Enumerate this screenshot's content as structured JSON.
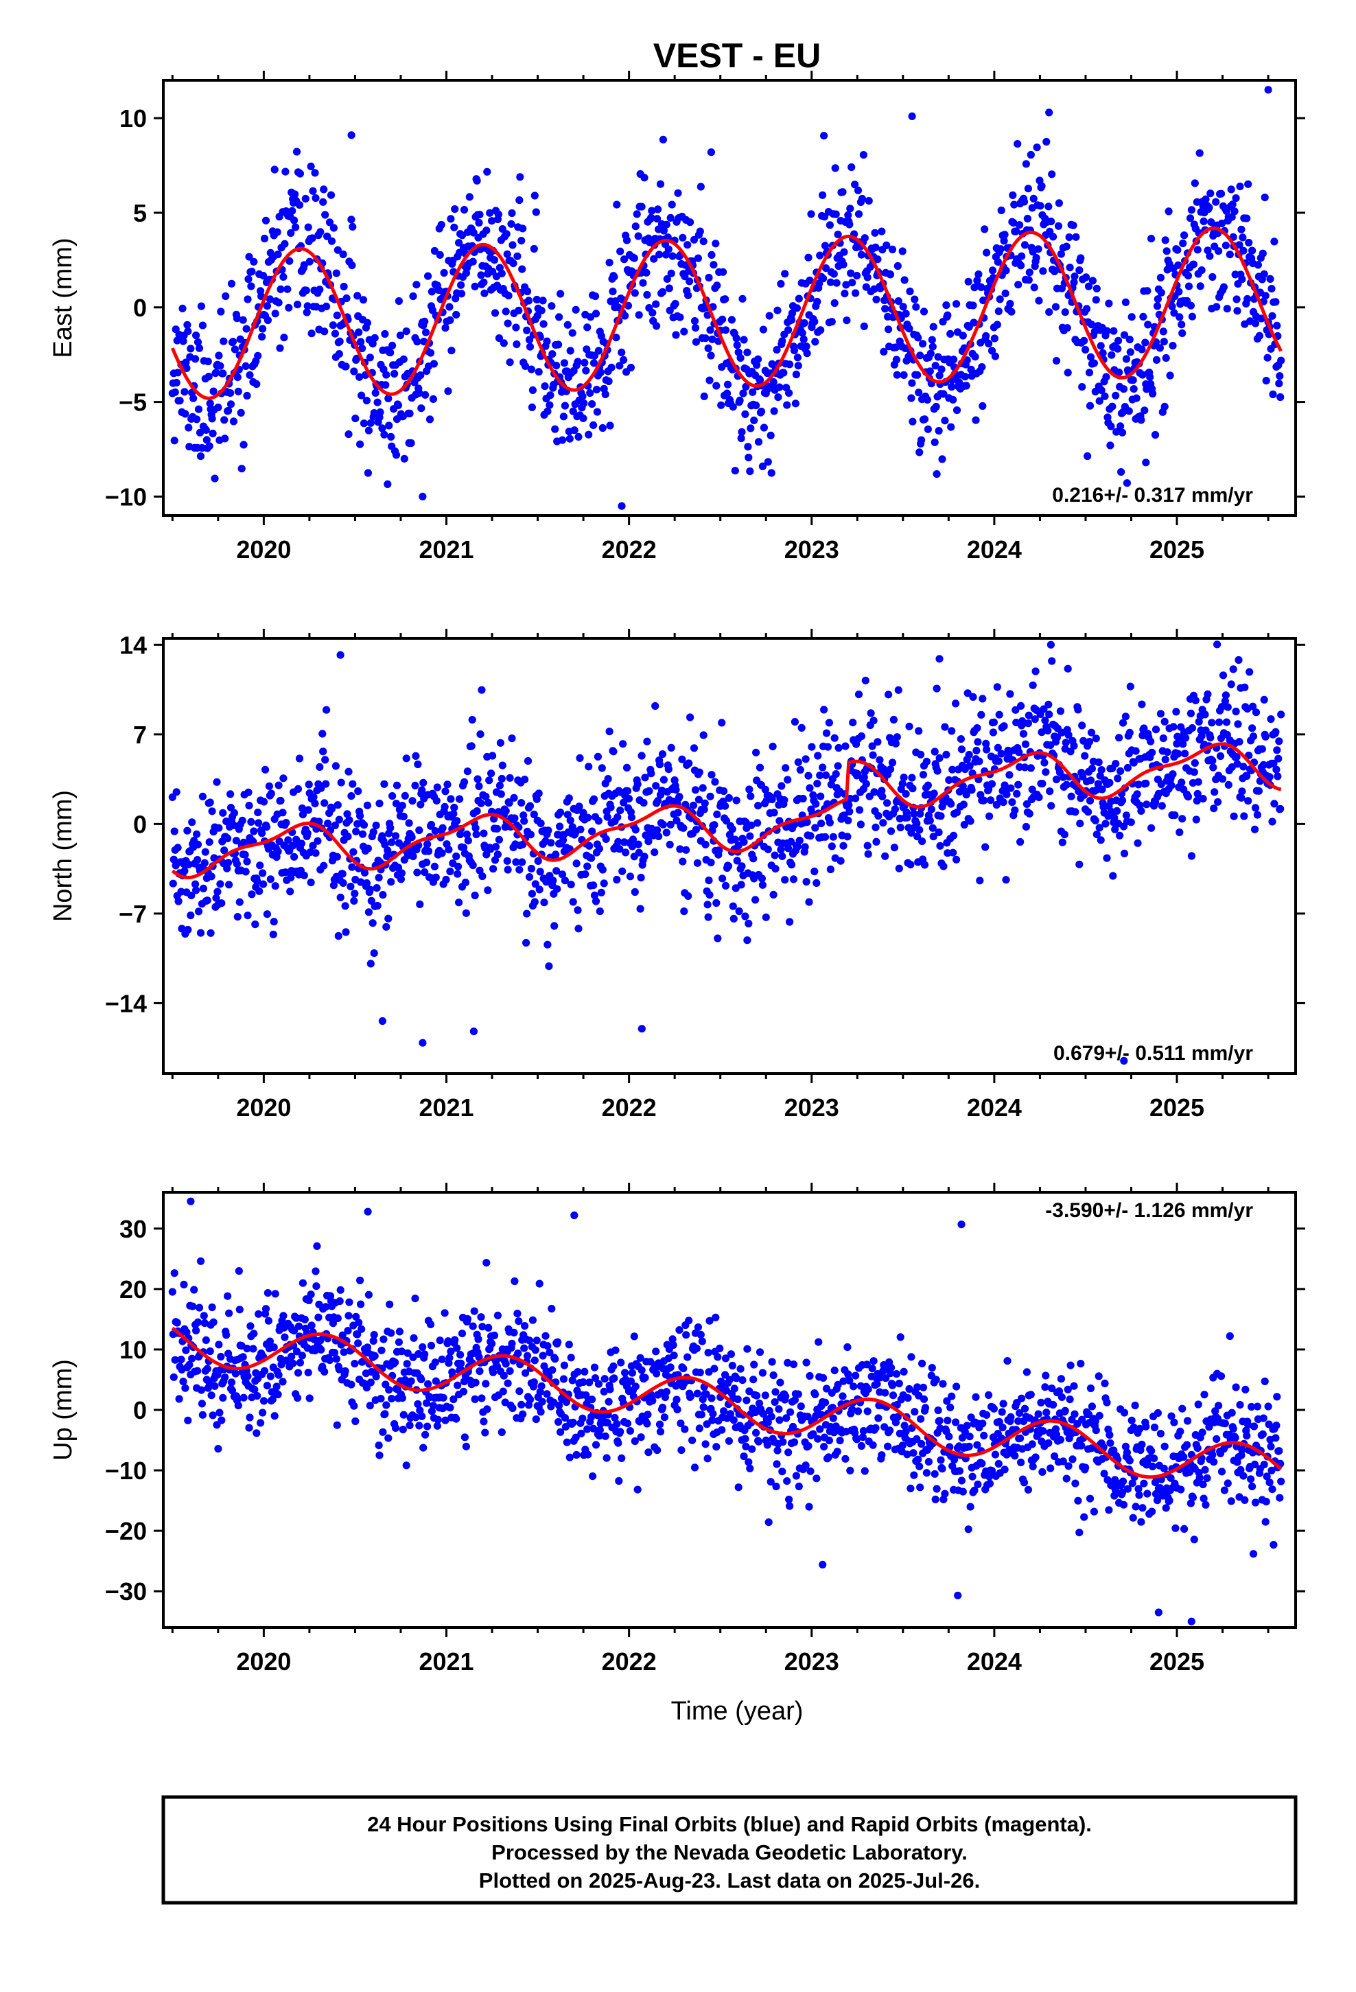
{
  "title": "VEST - EU",
  "xlabel": "Time (year)",
  "footer": {
    "line1": "24 Hour Positions Using Final Orbits (blue) and Rapid Orbits (magenta).",
    "line2": "Processed by the Nevada Geodetic Laboratory.",
    "line3": "Plotted on 2025-Aug-23. Last data on 2025-Jul-26."
  },
  "colors": {
    "points": "#0000ff",
    "fit": "#ff0000",
    "frame": "#000000",
    "background": "#ffffff"
  },
  "chart_data": [
    {
      "type": "scatter",
      "name": "east",
      "ylabel": "East (mm)",
      "rate_text": "0.216+/- 0.317 mm/yr",
      "xlim": [
        2019.45,
        2025.65
      ],
      "ylim": [
        -11,
        12
      ],
      "yticks": [
        10,
        5,
        0,
        -5,
        -10
      ],
      "ytick_labels": [
        "10",
        "5",
        "0",
        "−5",
        "−10"
      ],
      "xticks": [
        2020,
        2021,
        2022,
        2023,
        2024,
        2025
      ],
      "xtick_labels": [
        "2020",
        "2021",
        "2022",
        "2023",
        "2024",
        "2025"
      ],
      "grid": false,
      "x_start": 2019.5,
      "x_end": 2025.57,
      "model": {
        "rate": 0.216,
        "offset": -0.3,
        "t0": 2022.5,
        "annual_amp": 3.9,
        "annual_phase": 0.2,
        "semi_amp": 0.0,
        "semi_phase": 0.0
      },
      "scatter_sd": 2.1,
      "n_points": 1650,
      "seed": 11,
      "outliers": [
        [
          2020.48,
          9.1
        ],
        [
          2021.96,
          -10.5
        ],
        [
          2022.45,
          8.2
        ],
        [
          2023.55,
          10.1
        ],
        [
          2024.3,
          10.3
        ],
        [
          2025.5,
          11.5
        ],
        [
          2020.87,
          -10.0
        ],
        [
          2024.83,
          -8.2
        ]
      ]
    },
    {
      "type": "scatter",
      "name": "north",
      "ylabel": "North (mm)",
      "rate_text": "0.679+/- 0.511 mm/yr",
      "xlim": [
        2019.45,
        2025.65
      ],
      "ylim": [
        -19.5,
        14.5
      ],
      "yticks": [
        14,
        7,
        0,
        -7,
        -14
      ],
      "ytick_labels": [
        "14",
        "7",
        "0",
        "−7",
        "−14"
      ],
      "xticks": [
        2020,
        2021,
        2022,
        2023,
        2024,
        2025
      ],
      "xtick_labels": [
        "2020",
        "2021",
        "2022",
        "2023",
        "2024",
        "2025"
      ],
      "grid": false,
      "x_start": 2019.5,
      "x_end": 2025.57,
      "model": {
        "rate": 0.679,
        "offset": -0.2,
        "t0": 2022.5,
        "annual_amp": 1.6,
        "annual_phase": 0.15,
        "semi_amp": 0.6,
        "semi_phase": 0.3,
        "steps": [
          [
            2023.2,
            2.8
          ]
        ]
      },
      "scatter_sd": 2.9,
      "n_points": 1650,
      "seed": 23,
      "outliers": [
        [
          2020.42,
          13.2
        ],
        [
          2024.31,
          14.0
        ],
        [
          2020.87,
          -17.1
        ],
        [
          2021.15,
          -16.2
        ],
        [
          2022.07,
          -16.0
        ],
        [
          2024.71,
          -18.5
        ],
        [
          2020.65,
          -15.4
        ],
        [
          2023.7,
          12.9
        ]
      ]
    },
    {
      "type": "scatter",
      "name": "up",
      "ylabel": "Up (mm)",
      "rate_text": "-3.590+/- 1.126 mm/yr",
      "xlim": [
        2019.45,
        2025.65
      ],
      "ylim": [
        -36,
        36
      ],
      "yticks": [
        30,
        20,
        10,
        0,
        -10,
        -20,
        -30
      ],
      "ytick_labels": [
        "30",
        "20",
        "10",
        "0",
        "−10",
        "−20",
        "−30"
      ],
      "xticks": [
        2020,
        2021,
        2022,
        2023,
        2024,
        2025
      ],
      "xtick_labels": [
        "2020",
        "2021",
        "2022",
        "2023",
        "2024",
        "2025"
      ],
      "grid": false,
      "x_start": 2019.5,
      "x_end": 2025.57,
      "model": {
        "rate": -3.59,
        "offset": 1.0,
        "t0": 2022.5,
        "annual_amp": 3.7,
        "annual_phase": 0.33,
        "semi_amp": 0.0,
        "semi_phase": 0.0
      },
      "scatter_sd": 5.2,
      "n_points": 1650,
      "seed": 37,
      "outliers": [
        [
          2019.6,
          34.5
        ],
        [
          2020.57,
          32.8
        ],
        [
          2021.7,
          32.2
        ],
        [
          2023.82,
          30.7
        ],
        [
          2023.8,
          -30.7
        ],
        [
          2025.08,
          -35.0
        ],
        [
          2024.9,
          -33.5
        ],
        [
          2023.06,
          -25.6
        ]
      ]
    }
  ]
}
